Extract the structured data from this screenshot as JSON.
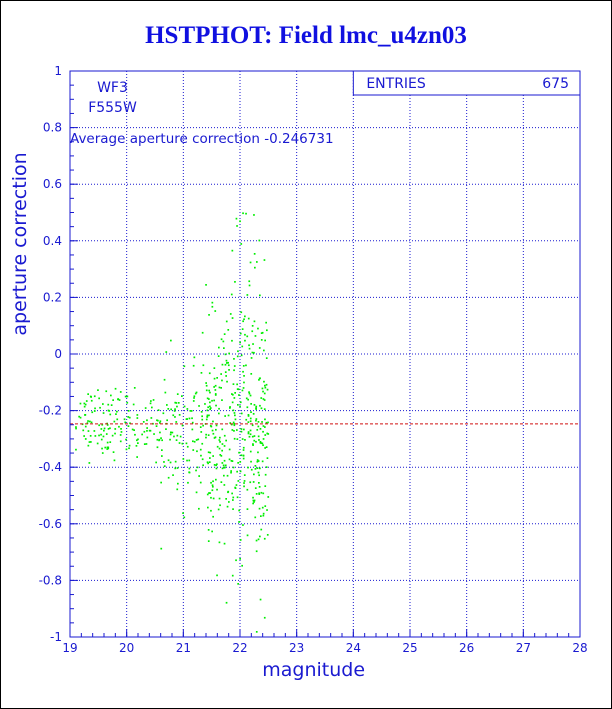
{
  "colors": {
    "frame": "#1a1ad0",
    "title": "#1010e0",
    "points": "#00ee00",
    "average_line": "#d01010"
  },
  "chart_data": {
    "type": "scatter",
    "title": "HSTPHOT: Field lmc_u4zn03",
    "xlabel": "magnitude",
    "ylabel": "aperture correction",
    "xlim": [
      19,
      28
    ],
    "ylim": [
      -1,
      1
    ],
    "x_ticks": [
      "19",
      "20",
      "21",
      "22",
      "23",
      "24",
      "25",
      "26",
      "27",
      "28"
    ],
    "y_ticks": [
      "-1",
      "-0.8",
      "-0.6",
      "-0.4",
      "-0.2",
      "0",
      "0.2",
      "0.4",
      "0.6",
      "0.8",
      "1"
    ],
    "grid": true,
    "stats": {
      "label": "ENTRIES",
      "value": "675"
    },
    "annotations": {
      "chip": "WF3",
      "filter": "F555W",
      "average_text": "Average aperture correction -0.246731"
    },
    "average_value": -0.246731,
    "clusters": [
      {
        "x_range": [
          19.1,
          19.8
        ],
        "y_mean": -0.24,
        "y_sd": 0.06,
        "count": 80
      },
      {
        "x_range": [
          19.8,
          20.6
        ],
        "y_mean": -0.25,
        "y_sd": 0.06,
        "count": 70
      },
      {
        "x_range": [
          20.6,
          21.4
        ],
        "y_mean": -0.27,
        "y_sd": 0.12,
        "count": 110
      },
      {
        "x_range": [
          21.4,
          22.0
        ],
        "y_mean": -0.3,
        "y_sd": 0.2,
        "count": 200
      },
      {
        "x_range": [
          22.0,
          22.5
        ],
        "y_mean": -0.27,
        "y_sd": 0.25,
        "count": 200
      },
      {
        "x_range": [
          21.8,
          22.4
        ],
        "y_mean": 0.3,
        "y_sd": 0.13,
        "count": 15
      }
    ]
  }
}
